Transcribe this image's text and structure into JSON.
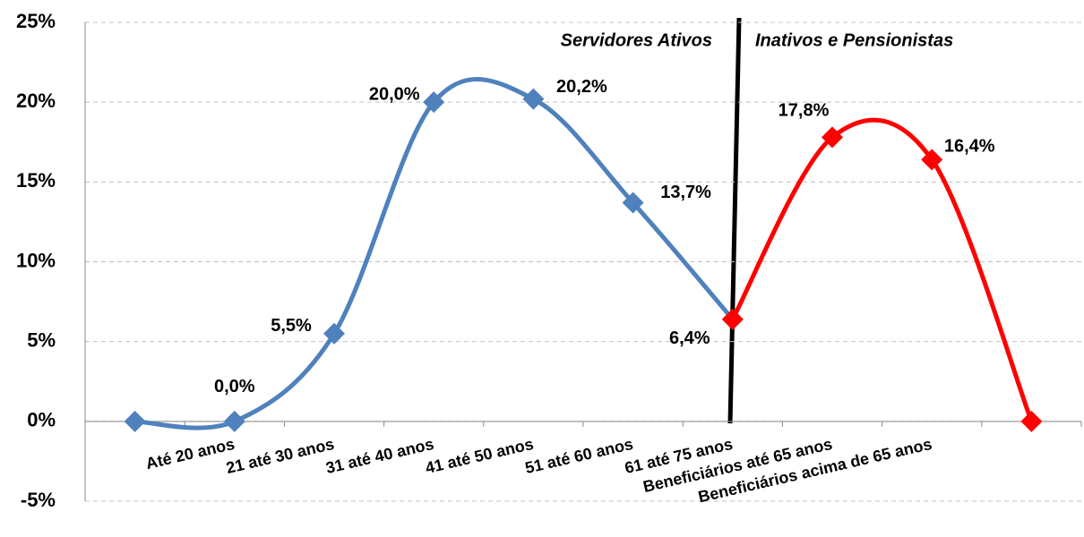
{
  "chart_data": {
    "type": "line",
    "categories": [
      null,
      "Até 20 anos",
      "21 até 30 anos",
      "31 até 40 anos",
      "41 até 50 anos",
      "51 até 60 anos",
      "61 até 75 anos",
      "Beneficiários até 65 anos",
      "Beneficiários acima de 65 anos",
      null
    ],
    "series": [
      {
        "color": "#4f81bd",
        "values": [
          0,
          0,
          5.5,
          20,
          20.2,
          13.7,
          6.4,
          null,
          null,
          null
        ],
        "value_labels": [
          null,
          "0,0%",
          "5,5%",
          "20,0%",
          "20,2%",
          "13,7%",
          "6,4%",
          null,
          null,
          null
        ]
      },
      {
        "color": "#ff0000",
        "values": [
          null,
          null,
          null,
          null,
          null,
          null,
          6.4,
          17.8,
          16.4,
          0
        ],
        "value_labels": [
          null,
          null,
          null,
          null,
          null,
          null,
          null,
          "17,8%",
          "16,4%",
          null
        ]
      }
    ],
    "ylim": [
      -5,
      25
    ],
    "yticks": [
      {
        "value": -5,
        "label": "-5%"
      },
      {
        "value": 0,
        "label": "0%"
      },
      {
        "value": 5,
        "label": "5%"
      },
      {
        "value": 10,
        "label": "10%"
      },
      {
        "value": 15,
        "label": "15%"
      },
      {
        "value": 20,
        "label": "20%"
      },
      {
        "value": 25,
        "label": "25%"
      }
    ],
    "grid": true,
    "annotations": [
      "Servidores Ativos",
      "Inativos e Pensionistas"
    ]
  }
}
